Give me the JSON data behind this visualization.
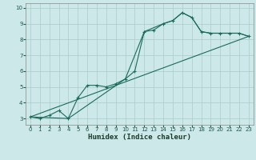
{
  "xlabel": "Humidex (Indice chaleur)",
  "bg_color": "#cce8e8",
  "grid_color": "#aacccc",
  "line_color": "#1a6b5a",
  "xlim": [
    -0.5,
    23.5
  ],
  "ylim": [
    2.6,
    10.3
  ],
  "xticks": [
    0,
    1,
    2,
    3,
    4,
    5,
    6,
    7,
    8,
    9,
    10,
    11,
    12,
    13,
    14,
    15,
    16,
    17,
    18,
    19,
    20,
    21,
    22,
    23
  ],
  "yticks": [
    3,
    4,
    5,
    6,
    7,
    8,
    9,
    10
  ],
  "series_main": {
    "x": [
      0,
      1,
      2,
      3,
      4,
      5,
      6,
      7,
      8,
      9,
      10,
      11,
      12,
      13,
      14,
      15,
      16,
      17,
      18,
      19,
      20,
      21,
      22,
      23
    ],
    "y": [
      3.1,
      3.0,
      3.2,
      3.5,
      3.0,
      4.3,
      5.1,
      5.1,
      5.0,
      5.2,
      5.5,
      6.0,
      8.5,
      8.6,
      9.0,
      9.2,
      9.7,
      9.4,
      8.5,
      8.4,
      8.4,
      8.4,
      8.4,
      8.2
    ]
  },
  "series_line1": {
    "x": [
      0,
      23
    ],
    "y": [
      3.1,
      8.2
    ]
  },
  "series_line2": {
    "x": [
      0,
      4,
      10,
      12,
      14,
      15,
      16,
      17,
      18,
      19,
      20,
      21,
      22,
      23
    ],
    "y": [
      3.1,
      3.0,
      5.5,
      8.5,
      9.0,
      9.2,
      9.7,
      9.4,
      8.5,
      8.4,
      8.4,
      8.4,
      8.4,
      8.2
    ]
  }
}
